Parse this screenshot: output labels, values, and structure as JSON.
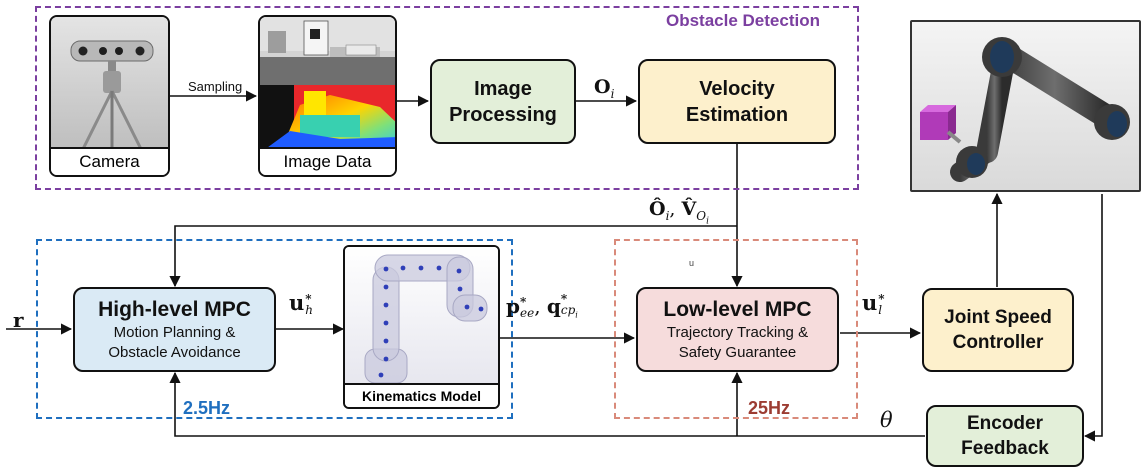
{
  "regions": {
    "obstacle_detection": {
      "label": "Obstacle Detection",
      "color": "#7b3fa0"
    },
    "high_level": {
      "rate": "2.5Hz",
      "color": "#1f6fbf"
    },
    "low_level": {
      "rate": "25Hz",
      "color": "#d98a7a",
      "rate_color": "#9c3c32"
    }
  },
  "pictures": {
    "camera": {
      "caption": "Camera",
      "icon": "camera-icon"
    },
    "image_data": {
      "caption": "Image Data"
    },
    "kinematics": {
      "caption": "Kinematics Model"
    },
    "robot": {
      "icon": "robot-arm-icon"
    }
  },
  "edge_labels": {
    "sampling": "Sampling",
    "stray_mark": "u"
  },
  "blocks": {
    "image_processing": {
      "line1": "Image",
      "line2": "Processing",
      "fill": "#e3efd9"
    },
    "velocity_estimation": {
      "line1": "Velocity",
      "line2": "Estimation",
      "fill": "#fdf0cc"
    },
    "high_level_mpc": {
      "title": "High-level MPC",
      "line1": "Motion Planning &",
      "line2": "Obstacle Avoidance",
      "fill": "#daeaf5"
    },
    "low_level_mpc": {
      "title": "Low-level MPC",
      "line1": "Trajectory Tracking &",
      "line2": "Safety Guarantee",
      "fill": "#f6dcdc"
    },
    "joint_speed": {
      "line1": "Joint Speed",
      "line2": "Controller",
      "fill": "#fdf0cc"
    },
    "encoder": {
      "line1": "Encoder",
      "line2": "Feedback",
      "fill": "#e3efd9"
    }
  },
  "math": {
    "r": {
      "base": "r"
    },
    "uh": {
      "base": "u",
      "sub": "h",
      "sup": "*"
    },
    "ul": {
      "base": "u",
      "sub": "l",
      "sup": "*"
    },
    "oi": {
      "base": "O",
      "sub": "i"
    },
    "ohat": {
      "a": "Ô",
      "a_sub": "i",
      "sep": ", ",
      "b": "V̂",
      "b_sub": "O",
      "b_subsub": "i"
    },
    "pq": {
      "a": "p",
      "a_sup": "*",
      "a_sub": "ee",
      "sep": ", ",
      "b": "q",
      "b_sup": "*",
      "b_sub": "cp",
      "b_subsub": "i"
    },
    "theta": {
      "base": "θ"
    }
  }
}
